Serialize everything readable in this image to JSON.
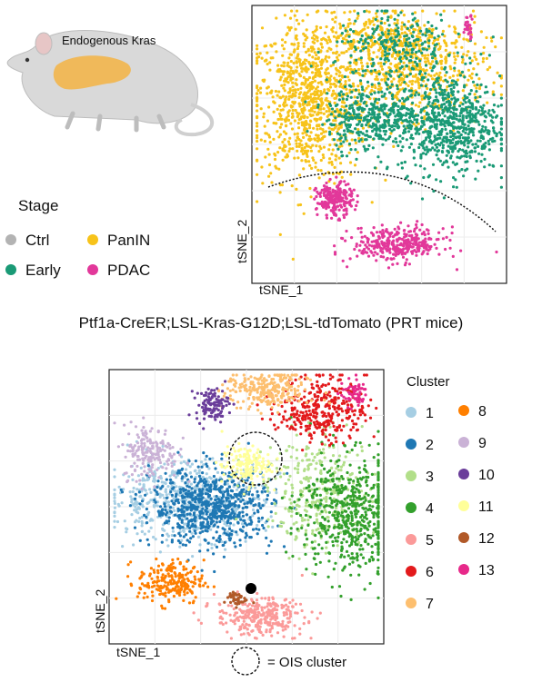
{
  "colors": {
    "stage": {
      "Ctrl": "#b3b3b3",
      "PanIN": "#f7c31a",
      "Early": "#1a9a76",
      "PDAC": "#e2389a"
    },
    "cluster": {
      "1": "#a6cee3",
      "2": "#1f78b4",
      "3": "#b2df8a",
      "4": "#33a02c",
      "5": "#fb9a99",
      "6": "#e31a1c",
      "7": "#fdbf6f",
      "8": "#ff7f00",
      "9": "#cab2d6",
      "10": "#6a3d9a",
      "11": "#ffff99",
      "12": "#b15928",
      "13": "#e7298a"
    }
  },
  "mouse_label": "Endogenous Kras",
  "caption": "Ptf1a-CreER;LSL-Kras-G12D;LSL-tdTomato (PRT mice)",
  "chart_data": [
    {
      "type": "scatter",
      "xlabel": "tSNE_1",
      "ylabel": "tSNE_2",
      "grid": true,
      "legend": {
        "title": "Stage",
        "placement": "left",
        "entries": [
          "Ctrl",
          "PanIN",
          "Early",
          "PDAC"
        ]
      },
      "annotations": [
        "dashed arc separating PDAC clusters from PanIN / Early clusters"
      ],
      "series": [
        {
          "name": "PanIN",
          "regions": [
            {
              "cx": -0.55,
              "cy": 0.3,
              "sx": 0.22,
              "sy": 0.28,
              "n": 900
            },
            {
              "cx": 0.25,
              "cy": 0.55,
              "sx": 0.3,
              "sy": 0.18,
              "n": 600
            },
            {
              "cx": -0.05,
              "cy": 0.78,
              "sx": 0.25,
              "sy": 0.08,
              "n": 200
            }
          ]
        },
        {
          "name": "Early",
          "regions": [
            {
              "cx": 0.55,
              "cy": 0.15,
              "sx": 0.2,
              "sy": 0.18,
              "n": 700
            },
            {
              "cx": -0.05,
              "cy": 0.2,
              "sx": 0.18,
              "sy": 0.12,
              "n": 400
            },
            {
              "cx": 0.15,
              "cy": 0.7,
              "sx": 0.25,
              "sy": 0.12,
              "n": 250
            }
          ]
        },
        {
          "name": "PDAC",
          "regions": [
            {
              "cx": 0.15,
              "cy": -0.72,
              "sx": 0.18,
              "sy": 0.06,
              "n": 350
            },
            {
              "cx": -0.35,
              "cy": -0.4,
              "sx": 0.07,
              "sy": 0.06,
              "n": 220
            },
            {
              "cx": 0.7,
              "cy": 0.85,
              "sx": 0.02,
              "sy": 0.04,
              "n": 30
            }
          ]
        }
      ]
    },
    {
      "type": "scatter",
      "xlabel": "tSNE_1",
      "ylabel": "tSNE_2",
      "grid": true,
      "legend": {
        "title": "Cluster",
        "placement": "right",
        "entries": [
          "1",
          "2",
          "3",
          "4",
          "5",
          "6",
          "7",
          "8",
          "9",
          "10",
          "11",
          "12",
          "13"
        ]
      },
      "annotations": [
        "dashed circle around cluster 11",
        "black dot near cluster 12",
        "= OIS cluster"
      ],
      "series": [
        {
          "name": "1",
          "regions": [
            {
              "cx": -0.45,
              "cy": 0.05,
              "sx": 0.28,
              "sy": 0.14,
              "n": 600
            }
          ]
        },
        {
          "name": "2",
          "regions": [
            {
              "cx": -0.25,
              "cy": 0.0,
              "sx": 0.22,
              "sy": 0.14,
              "n": 700
            }
          ]
        },
        {
          "name": "3",
          "regions": [
            {
              "cx": 0.55,
              "cy": 0.1,
              "sx": 0.2,
              "sy": 0.2,
              "n": 350
            }
          ]
        },
        {
          "name": "4",
          "regions": [
            {
              "cx": 0.75,
              "cy": -0.05,
              "sx": 0.18,
              "sy": 0.22,
              "n": 550
            }
          ]
        },
        {
          "name": "5",
          "regions": [
            {
              "cx": 0.1,
              "cy": -0.8,
              "sx": 0.16,
              "sy": 0.07,
              "n": 300
            }
          ]
        },
        {
          "name": "6",
          "regions": [
            {
              "cx": 0.55,
              "cy": 0.72,
              "sx": 0.16,
              "sy": 0.12,
              "n": 350
            }
          ]
        },
        {
          "name": "7",
          "regions": [
            {
              "cx": 0.15,
              "cy": 0.85,
              "sx": 0.15,
              "sy": 0.07,
              "n": 260
            }
          ]
        },
        {
          "name": "8",
          "regions": [
            {
              "cx": -0.55,
              "cy": -0.55,
              "sx": 0.12,
              "sy": 0.08,
              "n": 220
            }
          ]
        },
        {
          "name": "9",
          "regions": [
            {
              "cx": -0.7,
              "cy": 0.4,
              "sx": 0.1,
              "sy": 0.1,
              "n": 180
            }
          ]
        },
        {
          "name": "10",
          "regions": [
            {
              "cx": -0.25,
              "cy": 0.75,
              "sx": 0.06,
              "sy": 0.06,
              "n": 110
            }
          ]
        },
        {
          "name": "11",
          "regions": [
            {
              "cx": 0.0,
              "cy": 0.3,
              "sx": 0.09,
              "sy": 0.07,
              "n": 160
            }
          ]
        },
        {
          "name": "12",
          "regions": [
            {
              "cx": -0.08,
              "cy": -0.67,
              "sx": 0.04,
              "sy": 0.03,
              "n": 40
            }
          ]
        },
        {
          "name": "13",
          "regions": [
            {
              "cx": 0.78,
              "cy": 0.83,
              "sx": 0.05,
              "sy": 0.05,
              "n": 60
            }
          ]
        }
      ]
    }
  ],
  "footnote": "= OIS cluster"
}
